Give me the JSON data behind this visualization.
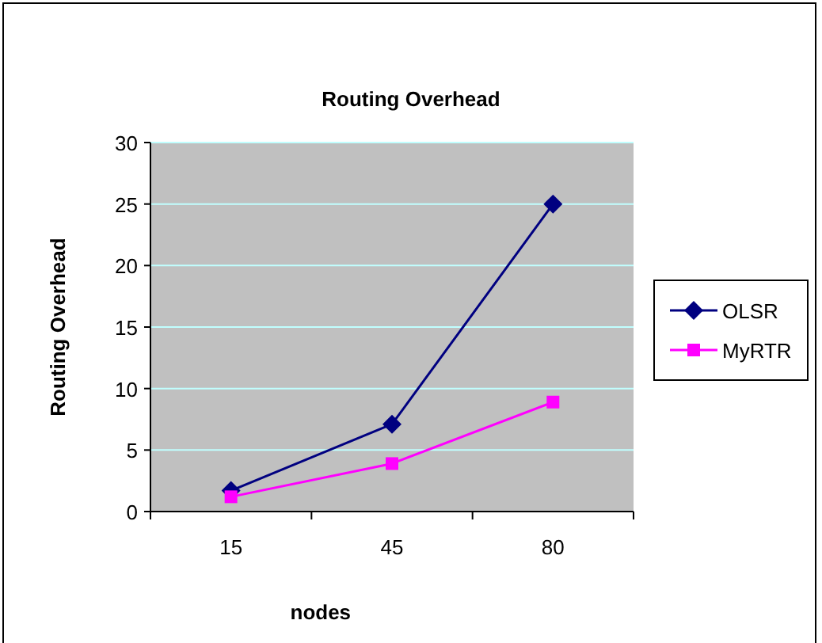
{
  "chart_data": {
    "type": "line",
    "title": "Routing Overhead",
    "xlabel": "nodes",
    "ylabel": "Routing Overhead",
    "categories": [
      "15",
      "45",
      "80"
    ],
    "series": [
      {
        "name": "OLSR",
        "color": "#000080",
        "values": [
          1.7,
          7.1,
          25
        ],
        "marker": "diamond"
      },
      {
        "name": "MyRTR",
        "color": "#ff00ff",
        "values": [
          1.2,
          3.9,
          8.9
        ],
        "marker": "square"
      }
    ],
    "ylim": [
      0,
      30
    ],
    "yticks": [
      0,
      5,
      10,
      15,
      20,
      25,
      30
    ],
    "grid": "y",
    "legend": "right"
  }
}
